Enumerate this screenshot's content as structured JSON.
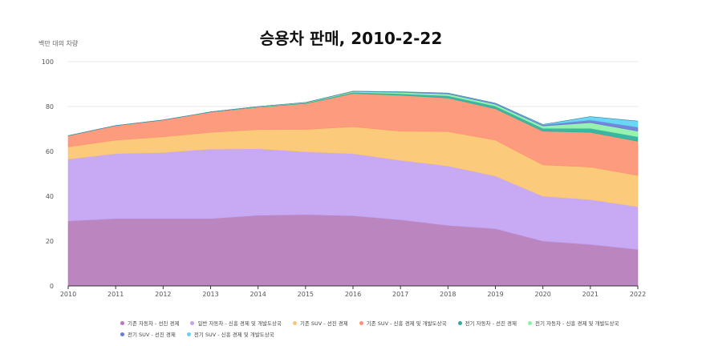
{
  "chart_data": {
    "type": "area",
    "stacked": true,
    "title": "승용차 판매, 2010-2-22",
    "ylabel": "백만 대의 차량",
    "xlabel": "",
    "x": [
      "2010",
      "2011",
      "2012",
      "2013",
      "2014",
      "2015",
      "2016",
      "2017",
      "2018",
      "2019",
      "2020",
      "2021",
      "2022"
    ],
    "ylim": [
      0,
      100
    ],
    "yticks": [
      0,
      20,
      40,
      60,
      80,
      100
    ],
    "grid": true,
    "legend_position": "bottom",
    "series": [
      {
        "name": "기존 자동차 - 선진 경제",
        "color": "#b57bbb",
        "values": [
          29,
          30,
          30,
          30,
          31.5,
          31.8,
          31.3,
          29.5,
          27,
          25.5,
          20,
          18.5,
          16.3
        ]
      },
      {
        "name": "일반 자동차 - 신흥 경제 및 개발도상국",
        "color": "#c3a2f2",
        "values": [
          27.5,
          29,
          29.5,
          31,
          29.7,
          28,
          27.7,
          26.5,
          26.5,
          23.5,
          20,
          20,
          19
        ]
      },
      {
        "name": "기존 SUV - 선진 경제",
        "color": "#fcc670",
        "values": [
          5.5,
          6,
          7,
          7.5,
          8.5,
          10,
          12,
          13,
          15.3,
          16,
          14,
          14.5,
          14
        ]
      },
      {
        "name": "기존 SUV - 신흥 경제 및 개발도상국",
        "color": "#fc9272",
        "values": [
          5,
          6.5,
          7.5,
          9,
          10,
          11.5,
          14.8,
          16,
          15,
          14,
          15,
          15.5,
          15.2
        ]
      },
      {
        "name": "전기 자동차 - 선진 경제",
        "color": "#2ab09a",
        "values": [
          0,
          0,
          0,
          0.1,
          0.2,
          0.3,
          0.5,
          0.7,
          1,
          1.2,
          1.3,
          1.8,
          2
        ]
      },
      {
        "name": "전기 자동차 - 신흥 경제 및 개발도상국",
        "color": "#8ef0a8",
        "values": [
          0,
          0,
          0,
          0,
          0.1,
          0.2,
          0.4,
          0.6,
          0.8,
          0.8,
          1,
          2.5,
          2.5
        ]
      },
      {
        "name": "전기 SUV - 선진 경제",
        "color": "#6a7bd6",
        "values": [
          0,
          0,
          0,
          0,
          0,
          0,
          0.1,
          0.2,
          0.3,
          0.4,
          0.5,
          1.2,
          1.8
        ]
      },
      {
        "name": "전기 SUV - 신흥 경제 및 개발도상국",
        "color": "#5cd4f4",
        "values": [
          0,
          0,
          0,
          0,
          0,
          0,
          0,
          0.1,
          0.1,
          0.1,
          0.2,
          1.5,
          2.7
        ]
      }
    ]
  }
}
